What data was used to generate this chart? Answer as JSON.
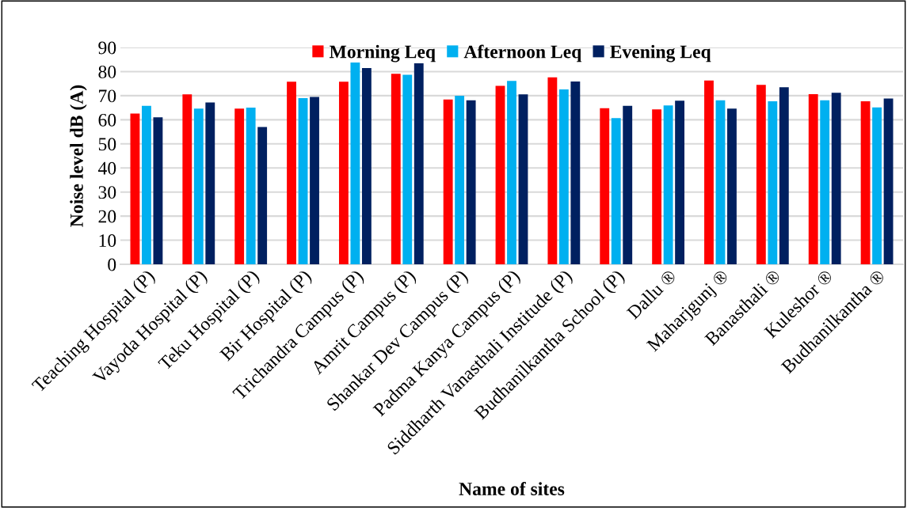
{
  "chart_data": {
    "type": "bar",
    "xlabel": "Name of sites",
    "ylabel": "Noise level dB (A)",
    "categories": [
      "Teaching Hospital (P)",
      "Vayoda Hospital (P)",
      "Teku Hospital (P)",
      "Bir Hospital (P)",
      "Trichandra Campus (P)",
      "Amrit Campus (P)",
      "Shankar Dev Campus (P)",
      "Padma Kanya Campus (P)",
      "Siddharth Vanasthali Institude (P)",
      "Budhanilkantha School (P)",
      "Dallu ®",
      "Maharjgunj ®",
      "Banasthali ®",
      "Kuleshor ®",
      "Budhanilkantha ®"
    ],
    "series": [
      {
        "name": "Morning Leq",
        "color": "#ff0000",
        "values": [
          62.6,
          70.5,
          64.6,
          75.8,
          75.8,
          79.1,
          68.4,
          74.1,
          77.6,
          64.8,
          64.3,
          76.3,
          74.5,
          70.6,
          67.7
        ]
      },
      {
        "name": "Afternoon Leq",
        "color": "#00b0f0",
        "values": [
          65.8,
          64.6,
          65.0,
          69.0,
          83.8,
          78.7,
          70.0,
          76.1,
          72.6,
          60.7,
          65.9,
          68.1,
          67.7,
          68.1,
          65.1
        ]
      },
      {
        "name": "Evening Leq",
        "color": "#002060",
        "values": [
          61.0,
          67.2,
          57.0,
          69.5,
          81.5,
          83.4,
          68.1,
          70.5,
          75.9,
          65.8,
          67.9,
          64.6,
          73.5,
          71.2,
          68.8
        ]
      }
    ],
    "ylim": [
      0,
      90
    ],
    "yticks": [
      0,
      10,
      20,
      30,
      40,
      50,
      60,
      70,
      80,
      90
    ],
    "grid": "y",
    "legend": "top"
  }
}
